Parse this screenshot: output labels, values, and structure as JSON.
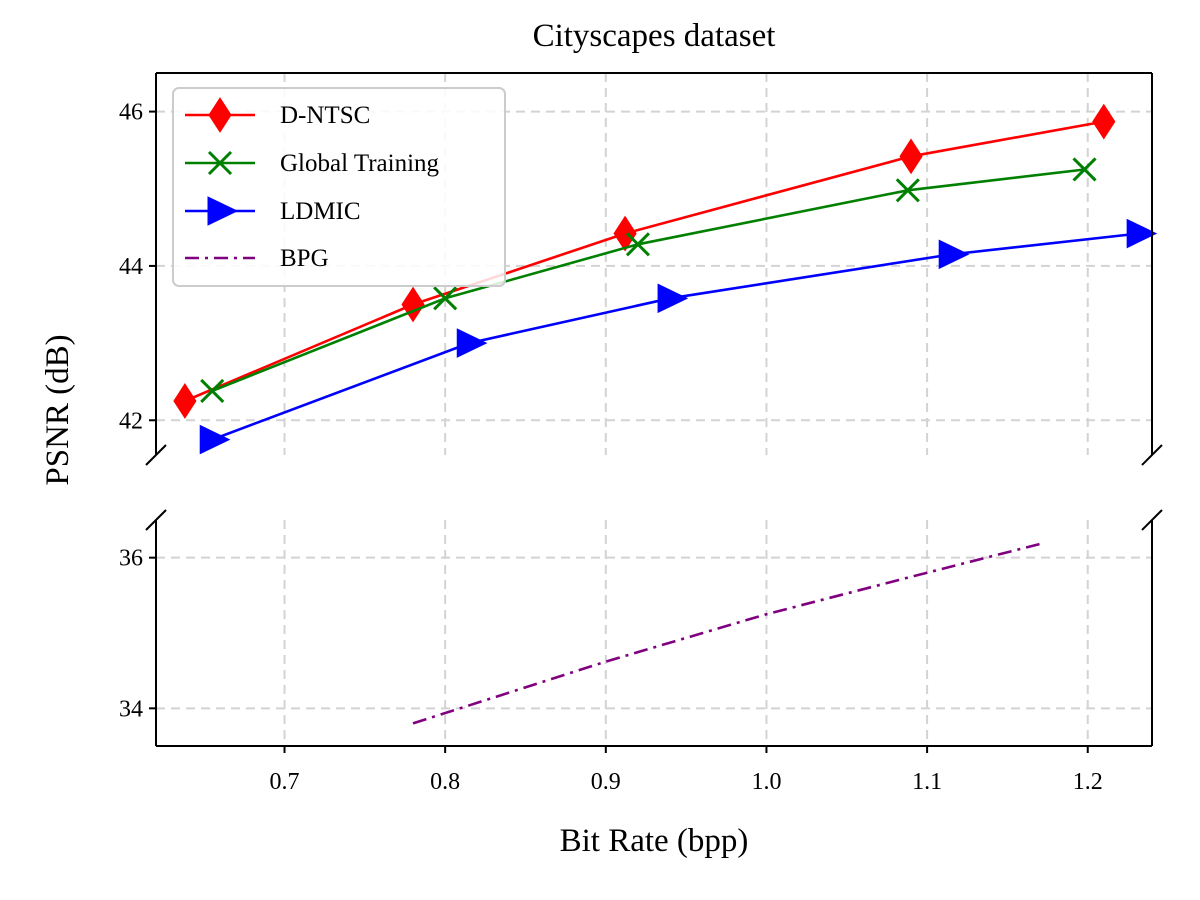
{
  "chart_data": {
    "type": "line",
    "title": "Cityscapes dataset",
    "xlabel": "Bit Rate (bpp)",
    "ylabel": "PSNR (dB)",
    "xlim": [
      0.62,
      1.24
    ],
    "x_ticks": [
      0.7,
      0.8,
      0.9,
      1.0,
      1.1,
      1.2
    ],
    "x_tick_labels": [
      "0.7",
      "0.8",
      "0.9",
      "1.0",
      "1.1",
      "1.2"
    ],
    "broken_y_axis": true,
    "upper_ylim": [
      41.55,
      46.5
    ],
    "upper_y_ticks": [
      42,
      44,
      46
    ],
    "upper_y_tick_labels": [
      "42",
      "44",
      "46"
    ],
    "lower_ylim": [
      33.5,
      36.5
    ],
    "lower_y_ticks": [
      34,
      36
    ],
    "lower_y_tick_labels": [
      "34",
      "36"
    ],
    "grid": true,
    "legend_position": "top-left",
    "series": [
      {
        "name": "D-NTSC",
        "color": "#ff0000",
        "marker": "diamond",
        "line": "solid",
        "panel": "upper",
        "x": [
          0.638,
          0.78,
          0.912,
          1.09,
          1.21
        ],
        "y": [
          42.25,
          43.5,
          44.42,
          45.42,
          45.87
        ]
      },
      {
        "name": "Global Training",
        "color": "#008000",
        "marker": "x",
        "line": "solid",
        "panel": "upper",
        "x": [
          0.655,
          0.8,
          0.92,
          1.088,
          1.198
        ],
        "y": [
          42.38,
          43.58,
          44.28,
          44.98,
          45.25
        ]
      },
      {
        "name": "LDMIC",
        "color": "#0000ff",
        "marker": "triangle-right",
        "line": "solid",
        "panel": "upper",
        "x": [
          0.655,
          0.815,
          0.94,
          1.115,
          1.232
        ],
        "y": [
          41.75,
          43.0,
          43.58,
          44.15,
          44.42
        ]
      },
      {
        "name": "BPG",
        "color": "#800080",
        "marker": "none",
        "line": "dashdot",
        "panel": "lower",
        "x": [
          0.78,
          0.9,
          1.0,
          1.1,
          1.17
        ],
        "y": [
          33.8,
          34.62,
          35.25,
          35.8,
          36.18
        ]
      }
    ]
  }
}
